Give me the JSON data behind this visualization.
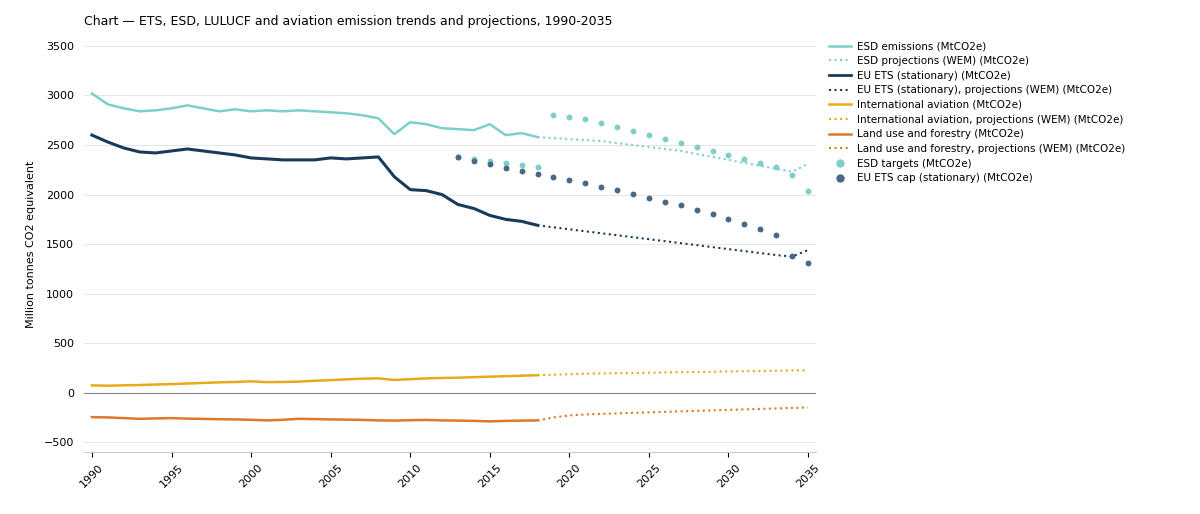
{
  "title": "Chart — ETS, ESD, LULUCF and aviation emission trends and projections, 1990-2035",
  "ylabel": "Million tonnes CO2 equivalent",
  "xlim": [
    1989.5,
    2035.5
  ],
  "ylim": [
    -600,
    3600
  ],
  "yticks": [
    -500,
    0,
    500,
    1000,
    1500,
    2000,
    2500,
    3000,
    3500
  ],
  "xticks": [
    1990,
    1995,
    2000,
    2005,
    2010,
    2015,
    2020,
    2025,
    2030,
    2035
  ],
  "background_color": "#ffffff",
  "grid_color": "#e0e0e0",
  "esd_emissions_years": [
    1990,
    1991,
    1992,
    1993,
    1994,
    1995,
    1996,
    1997,
    1998,
    1999,
    2000,
    2001,
    2002,
    2003,
    2004,
    2005,
    2006,
    2007,
    2008,
    2009,
    2010,
    2011,
    2012,
    2013,
    2014,
    2015,
    2016,
    2017,
    2018
  ],
  "esd_emissions_values": [
    3020,
    2910,
    2870,
    2840,
    2850,
    2870,
    2900,
    2870,
    2840,
    2860,
    2840,
    2850,
    2840,
    2850,
    2840,
    2830,
    2820,
    2800,
    2770,
    2610,
    2730,
    2710,
    2670,
    2660,
    2650,
    2710,
    2600,
    2620,
    2580
  ],
  "esd_proj_years": [
    2018,
    2019,
    2020,
    2021,
    2022,
    2023,
    2024,
    2025,
    2026,
    2027,
    2028,
    2029,
    2030,
    2031,
    2032,
    2033,
    2034,
    2035
  ],
  "esd_proj_values": [
    2580,
    2570,
    2560,
    2550,
    2540,
    2520,
    2500,
    2480,
    2460,
    2440,
    2410,
    2380,
    2350,
    2320,
    2290,
    2260,
    2230,
    2310
  ],
  "esd_targets_years": [
    2013,
    2014,
    2015,
    2016,
    2017,
    2018,
    2019,
    2020,
    2021,
    2022,
    2023,
    2024,
    2025,
    2026,
    2027,
    2028,
    2029,
    2030,
    2031,
    2032,
    2033,
    2034,
    2035
  ],
  "esd_targets_values": [
    2380,
    2360,
    2340,
    2320,
    2300,
    2280,
    2800,
    2780,
    2760,
    2720,
    2680,
    2640,
    2600,
    2560,
    2520,
    2480,
    2440,
    2400,
    2360,
    2320,
    2280,
    2200,
    2040
  ],
  "eu_ets_years": [
    1990,
    1991,
    1992,
    1993,
    1994,
    1995,
    1996,
    1997,
    1998,
    1999,
    2000,
    2001,
    2002,
    2003,
    2004,
    2005,
    2006,
    2007,
    2008,
    2009,
    2010,
    2011,
    2012,
    2013,
    2014,
    2015,
    2016,
    2017,
    2018
  ],
  "eu_ets_values": [
    2600,
    2530,
    2470,
    2430,
    2420,
    2440,
    2460,
    2440,
    2420,
    2400,
    2370,
    2360,
    2350,
    2350,
    2350,
    2370,
    2360,
    2370,
    2380,
    2180,
    2050,
    2040,
    2000,
    1900,
    1860,
    1790,
    1750,
    1730,
    1690
  ],
  "eu_ets_proj_years": [
    2018,
    2019,
    2020,
    2021,
    2022,
    2023,
    2024,
    2025,
    2026,
    2027,
    2028,
    2029,
    2030,
    2031,
    2032,
    2033,
    2034,
    2035
  ],
  "eu_ets_proj_values": [
    1690,
    1670,
    1650,
    1630,
    1610,
    1590,
    1570,
    1550,
    1530,
    1510,
    1490,
    1470,
    1450,
    1430,
    1410,
    1390,
    1375,
    1440
  ],
  "eu_ets_cap_years": [
    2013,
    2014,
    2015,
    2016,
    2017,
    2018,
    2019,
    2020,
    2021,
    2022,
    2023,
    2024,
    2025,
    2026,
    2027,
    2028,
    2029,
    2030,
    2031,
    2032,
    2033,
    2034,
    2035
  ],
  "eu_ets_cap_values": [
    2380,
    2340,
    2310,
    2270,
    2240,
    2210,
    2180,
    2150,
    2120,
    2080,
    2050,
    2010,
    1970,
    1930,
    1890,
    1840,
    1800,
    1750,
    1700,
    1650,
    1590,
    1380,
    1310
  ],
  "intl_aviation_years": [
    1990,
    1991,
    1992,
    1993,
    1994,
    1995,
    1996,
    1997,
    1998,
    1999,
    2000,
    2001,
    2002,
    2003,
    2004,
    2005,
    2006,
    2007,
    2008,
    2009,
    2010,
    2011,
    2012,
    2013,
    2014,
    2015,
    2016,
    2017,
    2018
  ],
  "intl_aviation_values": [
    75,
    72,
    76,
    79,
    84,
    88,
    94,
    100,
    106,
    110,
    116,
    108,
    110,
    113,
    122,
    128,
    136,
    143,
    146,
    130,
    138,
    146,
    150,
    153,
    158,
    163,
    168,
    173,
    178
  ],
  "intl_aviation_proj_years": [
    2018,
    2019,
    2020,
    2021,
    2022,
    2023,
    2024,
    2025,
    2026,
    2027,
    2028,
    2029,
    2030,
    2031,
    2032,
    2033,
    2034,
    2035
  ],
  "intl_aviation_proj_values": [
    178,
    183,
    188,
    193,
    196,
    198,
    200,
    203,
    206,
    208,
    211,
    213,
    216,
    218,
    220,
    223,
    226,
    228
  ],
  "lulucf_years": [
    1990,
    1991,
    1992,
    1993,
    1994,
    1995,
    1996,
    1997,
    1998,
    1999,
    2000,
    2001,
    2002,
    2003,
    2004,
    2005,
    2006,
    2007,
    2008,
    2009,
    2010,
    2011,
    2012,
    2013,
    2014,
    2015,
    2016,
    2017,
    2018
  ],
  "lulucf_values": [
    -245,
    -248,
    -255,
    -262,
    -258,
    -255,
    -260,
    -263,
    -266,
    -268,
    -272,
    -278,
    -272,
    -262,
    -265,
    -268,
    -270,
    -273,
    -278,
    -280,
    -276,
    -273,
    -278,
    -280,
    -283,
    -288,
    -283,
    -280,
    -278
  ],
  "lulucf_proj_years": [
    2018,
    2019,
    2020,
    2021,
    2022,
    2023,
    2024,
    2025,
    2026,
    2027,
    2028,
    2029,
    2030,
    2031,
    2032,
    2033,
    2034,
    2035
  ],
  "lulucf_proj_values": [
    -278,
    -248,
    -228,
    -218,
    -212,
    -207,
    -202,
    -197,
    -192,
    -187,
    -182,
    -177,
    -172,
    -167,
    -162,
    -157,
    -152,
    -148
  ],
  "colors": {
    "esd_emissions": "#7dcfca",
    "esd_proj": "#7dcfca",
    "esd_targets": "#7dcfca",
    "eu_ets": "#1a3a5c",
    "eu_ets_proj": "#1a3a5c",
    "eu_ets_cap": "#4a6885",
    "intl_aviation": "#e8aa18",
    "intl_aviation_proj": "#e8aa18",
    "lulucf": "#e07828",
    "lulucf_proj": "#e07828",
    "zeroline": "#888888"
  },
  "legend_entries": [
    {
      "label": "ESD emissions (MtCO2e)",
      "color": "#7dcfca",
      "linestyle": "solid",
      "marker": "none",
      "lw": 1.8
    },
    {
      "label": "ESD projections (WEM) (MtCO2e)",
      "color": "#7dcfca",
      "linestyle": "dotted",
      "marker": "none",
      "lw": 1.5
    },
    {
      "label": "EU ETS (stationary) (MtCO2e)",
      "color": "#1a3a5c",
      "linestyle": "solid",
      "marker": "none",
      "lw": 2.0
    },
    {
      "label": "EU ETS (stationary), projections (WEM) (MtCO2e)",
      "color": "#1a3a5c",
      "linestyle": "dotted",
      "marker": "none",
      "lw": 1.5
    },
    {
      "label": "International aviation (MtCO2e)",
      "color": "#e8aa18",
      "linestyle": "solid",
      "marker": "none",
      "lw": 1.8
    },
    {
      "label": "International aviation, projections (WEM) (MtCO2e)",
      "color": "#e8aa18",
      "linestyle": "dotted",
      "marker": "none",
      "lw": 1.5
    },
    {
      "label": "Land use and forestry (MtCO2e)",
      "color": "#e07828",
      "linestyle": "solid",
      "marker": "none",
      "lw": 1.8
    },
    {
      "label": "Land use and forestry, projections (WEM) (MtCO2e)",
      "color": "#e07828",
      "linestyle": "dotted",
      "marker": "none",
      "lw": 1.5
    },
    {
      "label": "ESD targets (MtCO2e)",
      "color": "#7dcfca",
      "linestyle": "none",
      "marker": "o",
      "lw": 1.0
    },
    {
      "label": "EU ETS cap (stationary) (MtCO2e)",
      "color": "#4a6885",
      "linestyle": "none",
      "marker": "o",
      "lw": 1.0
    }
  ]
}
